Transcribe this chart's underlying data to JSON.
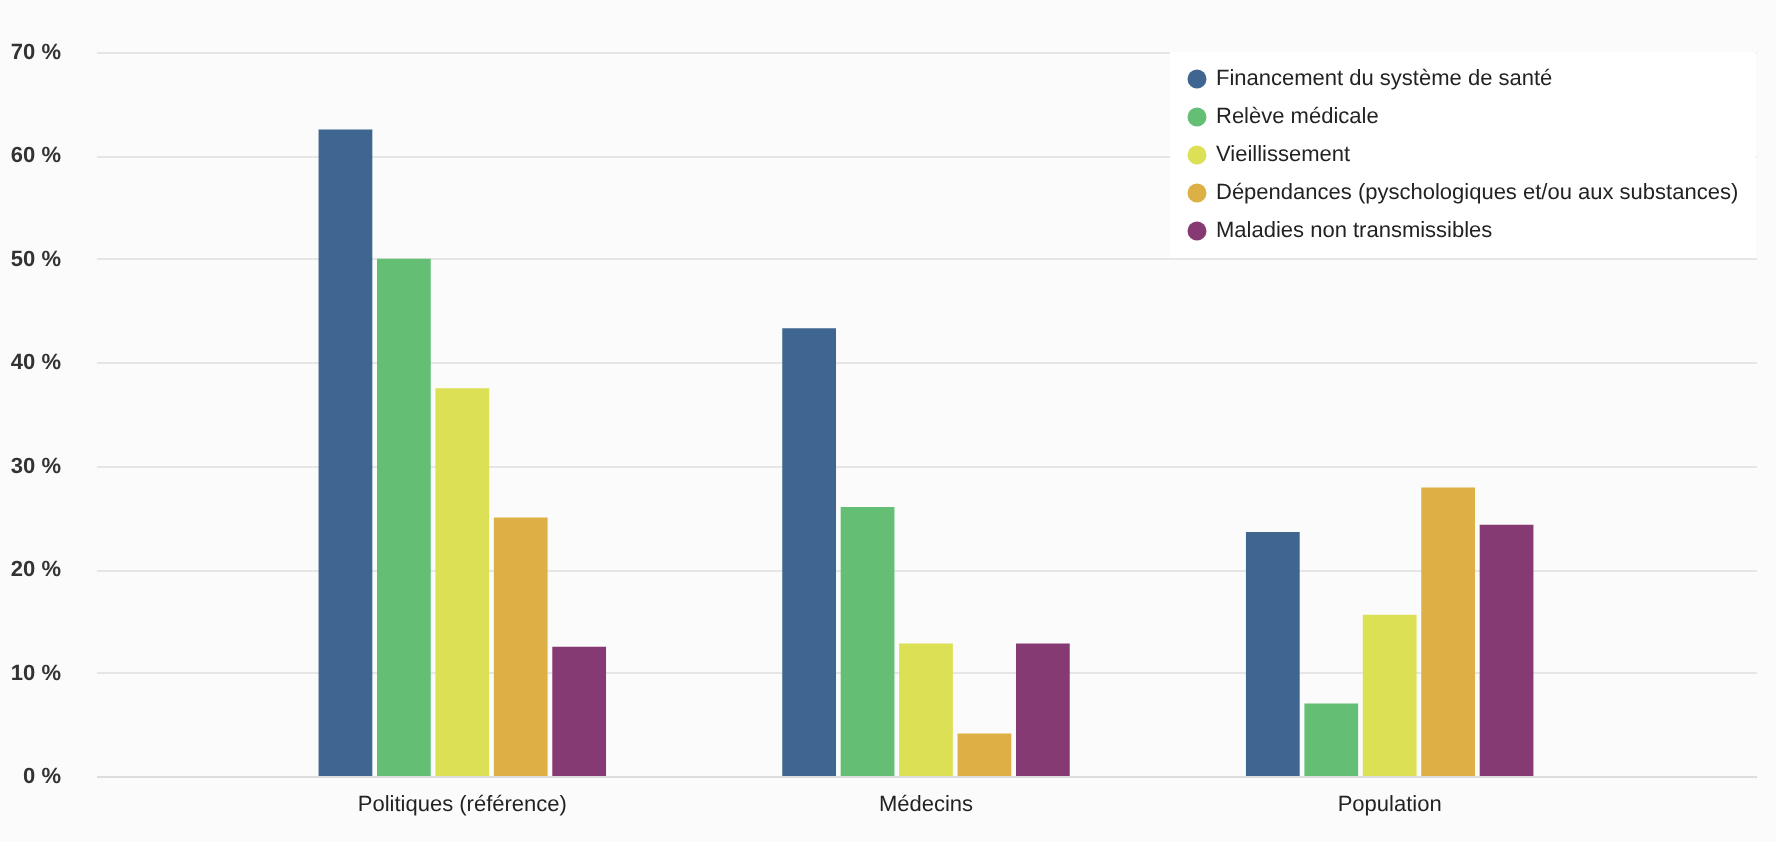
{
  "chart_data": {
    "type": "bar",
    "categories": [
      "Politiques (référence)",
      "Médecins",
      "Population"
    ],
    "series": [
      {
        "name": "Financement du système de santé",
        "color": "#3f6690",
        "values": [
          62.5,
          43.3,
          23.6
        ]
      },
      {
        "name": "Relève médicale",
        "color": "#64bf75",
        "values": [
          50,
          26,
          7
        ]
      },
      {
        "name": "Vieillissement",
        "color": "#dbe055",
        "values": [
          37.5,
          12.8,
          15.6
        ]
      },
      {
        "name": "Dépendances (pyschologiques et/ou aux substances)",
        "color": "#ddb045",
        "values": [
          25,
          4.1,
          27.9
        ]
      },
      {
        "name": "Maladies non transmissibles",
        "color": "#863a73",
        "values": [
          12.5,
          12.8,
          24.3
        ]
      }
    ],
    "ylim": [
      0,
      70
    ],
    "yticks": [
      {
        "value": 0,
        "label": "0 %"
      },
      {
        "value": 10,
        "label": "10 %"
      },
      {
        "value": 20,
        "label": "20 %"
      },
      {
        "value": 30,
        "label": "30 %"
      },
      {
        "value": 40,
        "label": "40 %"
      },
      {
        "value": 50,
        "label": "50 %"
      },
      {
        "value": 60,
        "label": "60 %"
      },
      {
        "value": 70,
        "label": "70 %"
      }
    ],
    "grid": "y",
    "legend": "top right",
    "marker": "circle"
  }
}
